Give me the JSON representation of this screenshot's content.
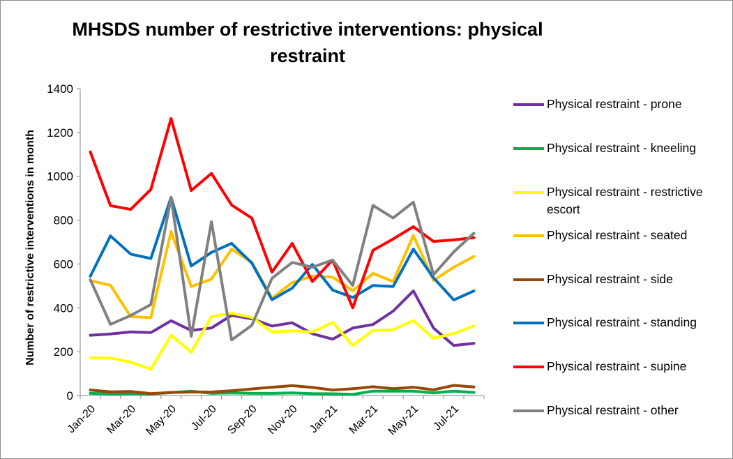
{
  "chart_data": {
    "type": "line",
    "title": "MHSDS number of restrictive interventions: physical restraint",
    "title_lines": [
      "MHSDS number of restrictive interventions: physical",
      "restraint"
    ],
    "xlabel": "",
    "ylabel": "Number of restrictive interventions in month",
    "ylim": [
      0,
      1400
    ],
    "yticks": [
      "0",
      "200",
      "400",
      "600",
      "800",
      "1000",
      "1200",
      "1400"
    ],
    "x": [
      "Jan-20",
      "Feb-20",
      "Mar-20",
      "Apr-20",
      "May-20",
      "Jun-20",
      "Jul-20",
      "Aug-20",
      "Sep-20",
      "Oct-20",
      "Nov-20",
      "Dec-20",
      "Jan-21",
      "Feb-21",
      "Mar-21",
      "Apr-21",
      "May-21",
      "Jun-21",
      "Jul-21",
      "Aug-21"
    ],
    "xtick_labels": [
      "Jan-20",
      "Mar-20",
      "May-20",
      "Jul-20",
      "Sep-20",
      "Nov-20",
      "Jan-21",
      "Mar-21",
      "May-21",
      "Jul-21"
    ],
    "grid": false,
    "legend_position": "right",
    "series": [
      {
        "name": "Physical restraint - prone",
        "color": "#7030a0",
        "values": [
          275,
          281,
          290,
          287,
          341,
          297,
          308,
          366,
          350,
          317,
          332,
          282,
          257,
          308,
          324,
          385,
          477,
          308,
          228,
          238
        ]
      },
      {
        "name": "Physical restraint - kneeling",
        "color": "#00b050",
        "values": [
          10,
          8,
          9,
          8,
          13,
          20,
          10,
          12,
          10,
          10,
          12,
          9,
          8,
          5,
          20,
          20,
          20,
          12,
          20,
          14
        ]
      },
      {
        "name": "Physical restraint - restrictive escort",
        "color": "#ffff00",
        "values": [
          172,
          171,
          152,
          120,
          275,
          198,
          360,
          375,
          356,
          290,
          295,
          290,
          334,
          228,
          297,
          300,
          342,
          261,
          283,
          317
        ]
      },
      {
        "name": "Physical restraint - seated",
        "color": "#ffc000",
        "values": [
          524,
          503,
          360,
          355,
          748,
          497,
          531,
          668,
          608,
          444,
          515,
          545,
          540,
          478,
          557,
          520,
          730,
          525,
          585,
          634
        ]
      },
      {
        "name": "Physical restraint - side",
        "color": "#984807",
        "values": [
          25,
          17,
          18,
          9,
          14,
          16,
          16,
          22,
          30,
          38,
          45,
          37,
          25,
          31,
          40,
          31,
          38,
          26,
          46,
          39
        ]
      },
      {
        "name": "Physical restraint - standing",
        "color": "#0070c0",
        "values": [
          544,
          728,
          645,
          625,
          904,
          591,
          653,
          694,
          604,
          437,
          490,
          598,
          481,
          447,
          502,
          497,
          668,
          537,
          436,
          477
        ]
      },
      {
        "name": "Physical restraint - supine",
        "color": "#ff0000",
        "values": [
          1111,
          866,
          849,
          940,
          1263,
          935,
          1013,
          869,
          809,
          563,
          694,
          520,
          618,
          400,
          662,
          714,
          770,
          703,
          710,
          720
        ]
      },
      {
        "name": "Physical restraint - other",
        "color": "#808080",
        "values": [
          528,
          325,
          365,
          415,
          903,
          270,
          793,
          254,
          320,
          535,
          607,
          585,
          618,
          502,
          867,
          810,
          882,
          551,
          655,
          740
        ]
      }
    ]
  }
}
